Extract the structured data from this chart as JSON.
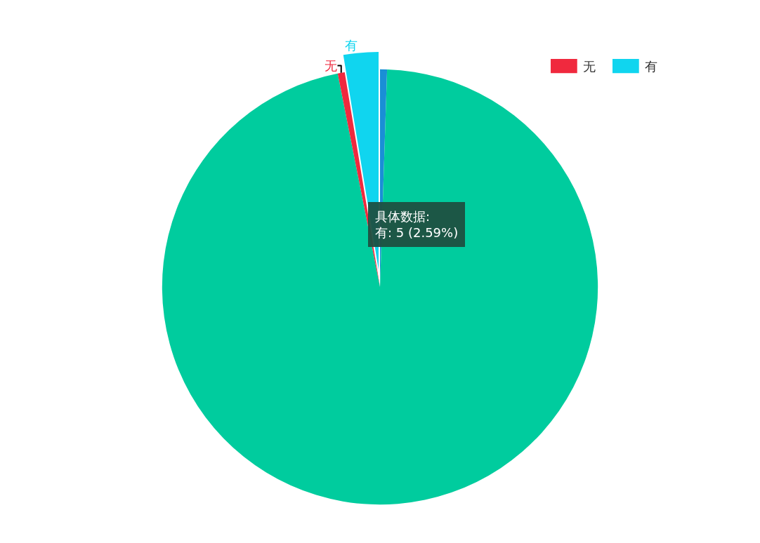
{
  "chart_data": {
    "type": "pie",
    "categories": [
      null,
      null,
      "无",
      "有"
    ],
    "values": [
      0.52,
      96.37,
      0.52,
      2.59
    ],
    "colors": [
      "#1a8fd6",
      "#00cc9e",
      "#f0293e",
      "#10d5ef"
    ],
    "legend": "top right",
    "annotations": [
      "具体数据:\n有: 5 (2.59%)"
    ]
  }
}
